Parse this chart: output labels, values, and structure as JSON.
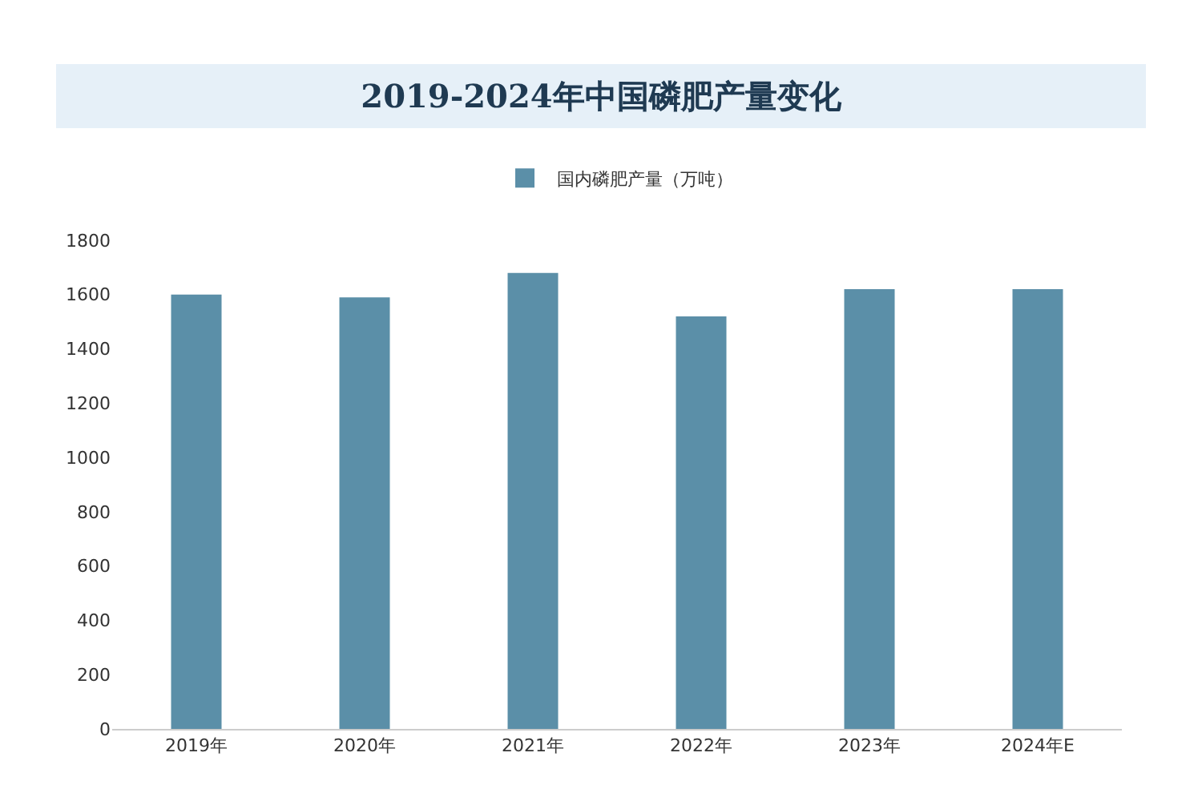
{
  "chart_data": {
    "type": "bar",
    "title": "2019-2024年中国磷肥产量变化",
    "categories": [
      "2019年",
      "2020年",
      "2021年",
      "2022年",
      "2023年",
      "2024年E"
    ],
    "series": [
      {
        "name": "国内磷肥产量（万吨）",
        "color": "#5b8fa8",
        "values": [
          1600,
          1590,
          1680,
          1520,
          1620,
          1620
        ]
      }
    ],
    "ylim": [
      0,
      1800
    ],
    "yticks": [
      0,
      200,
      400,
      600,
      800,
      1000,
      1200,
      1400,
      1600,
      1800
    ],
    "grid": false,
    "legend": "top"
  }
}
